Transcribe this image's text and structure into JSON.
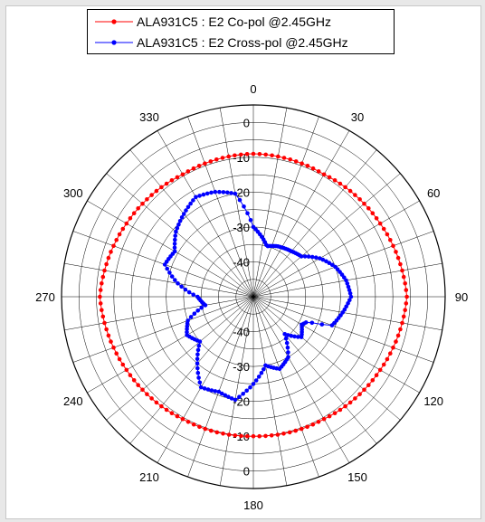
{
  "legend": [
    {
      "label": "ALA931C5 : E2 Co-pol @2.45GHz",
      "color": "#ff0000"
    },
    {
      "label": "ALA931C5 : E2 Cross-pol @2.45GHz",
      "color": "#0000ff"
    }
  ],
  "chart_data": {
    "type": "polar",
    "title": "",
    "angle_ticks": [
      "0",
      "30",
      "60",
      "90",
      "120",
      "150",
      "180",
      "210",
      "240",
      "270",
      "300",
      "330"
    ],
    "radial_ticks": [
      0,
      -10,
      -20,
      -30,
      -40
    ],
    "radial_tick_labels": [
      "0",
      "-10",
      "-20",
      "-30",
      "-40"
    ],
    "radial_range_db": [
      -50,
      5
    ],
    "grid": true,
    "legend_position": "top",
    "series": [
      {
        "name": "ALA931C5 : E2 Co-pol @2.45GHz",
        "color": "#ff0000",
        "angles_deg": [
          0,
          30,
          60,
          90,
          120,
          150,
          180,
          210,
          240,
          270,
          300,
          330
        ],
        "values_db": [
          -9,
          -9.5,
          -8,
          -6,
          -8,
          -9.5,
          -10,
          -9.5,
          -8,
          -6,
          -8,
          -9.5
        ]
      },
      {
        "name": "ALA931C5 : E2 Cross-pol @2.45GHz",
        "color": "#0000ff",
        "angles_deg": [
          0,
          15,
          25,
          40,
          50,
          60,
          70,
          80,
          90,
          100,
          110,
          115,
          120,
          130,
          140,
          150,
          160,
          170,
          180,
          190,
          200,
          210,
          220,
          230,
          240,
          250,
          260,
          270,
          280,
          290,
          300,
          310,
          320,
          330,
          340,
          350
        ],
        "values_db": [
          -30,
          -35,
          -34,
          -33,
          -32,
          -28,
          -25,
          -23,
          -22,
          -24,
          -26,
          -33,
          -34,
          -32,
          -36,
          -30,
          -28,
          -30,
          -25,
          -20,
          -21,
          -20,
          -25,
          -30,
          -28,
          -30,
          -36,
          -34,
          -28,
          -23,
          -24,
          -21,
          -19,
          -17,
          -18,
          -20
        ]
      }
    ]
  }
}
